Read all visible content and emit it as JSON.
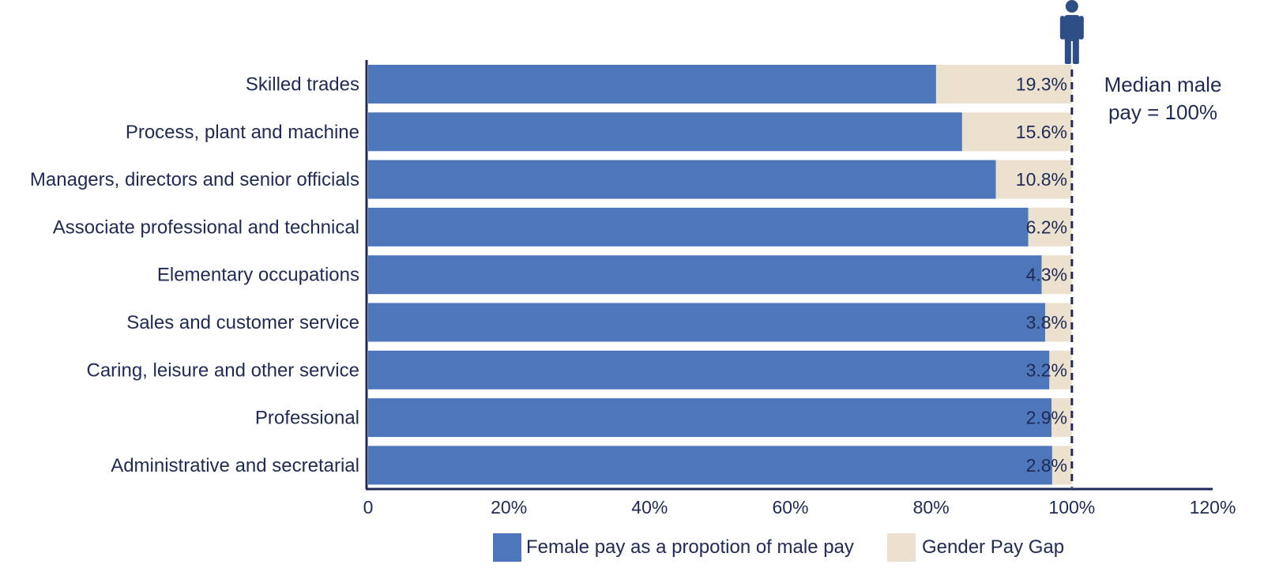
{
  "chart_data": {
    "type": "bar",
    "orientation": "horizontal",
    "stacked": true,
    "categories": [
      "Skilled trades",
      "Process, plant and machine",
      "Managers, directors and senior officials",
      "Associate professional and technical",
      "Elementary occupations",
      "Sales and customer service",
      "Caring, leisure and other service",
      "Professional",
      "Administrative and secretarial"
    ],
    "series": [
      {
        "name": "Female pay as a propotion of male pay",
        "color": "#4e76bb",
        "values": [
          80.7,
          84.4,
          89.2,
          93.8,
          95.7,
          96.2,
          96.8,
          97.1,
          97.2
        ]
      },
      {
        "name": "Gender Pay Gap",
        "color": "#ece1cf",
        "values": [
          19.3,
          15.6,
          10.8,
          6.2,
          4.3,
          3.8,
          3.2,
          2.9,
          2.8
        ]
      }
    ],
    "data_labels": [
      "19.3%",
      "15.6%",
      "10.8%",
      "6.2%",
      "4.3%",
      "3.8%",
      "3.2%",
      "2.9%",
      "2.8%"
    ],
    "x_ticks": [
      "0",
      "20%",
      "40%",
      "60%",
      "80%",
      "100%",
      "120%"
    ],
    "xlim": [
      0,
      120
    ],
    "grid": false,
    "legend_position": "bottom",
    "reference_line": {
      "value": 100,
      "label_lines": [
        "Median male",
        "pay = 100%"
      ],
      "icon": "male-person-icon",
      "style": "dashed"
    }
  },
  "colors": {
    "text": "#1f2a55",
    "axis": "#1f2a55",
    "female": "#4e76bb",
    "gap": "#ece1cf",
    "icon": "#2e4f86"
  }
}
